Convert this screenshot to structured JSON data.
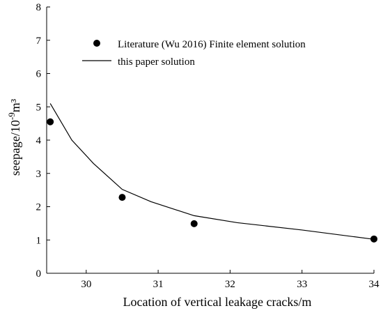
{
  "chart_data": {
    "type": "scatter",
    "title": "",
    "xlabel": "Location of vertical leakage cracks/m",
    "ylabel_main": "seepage/10",
    "ylabel_exp": "-9",
    "ylabel_unit": "m³",
    "xlim": [
      29.45,
      34.0
    ],
    "ylim": [
      0,
      8
    ],
    "x_ticks": [
      30,
      31,
      32,
      33,
      34
    ],
    "y_ticks": [
      0,
      1,
      2,
      3,
      4,
      5,
      6,
      7,
      8
    ],
    "grid": false,
    "legend_position": "top-right",
    "series": [
      {
        "name": "Literature (Wu 2016) Finite element solution",
        "kind": "points",
        "color": "#000000",
        "x": [
          29.5,
          30.5,
          31.5,
          34.0
        ],
        "y": [
          4.55,
          2.28,
          1.49,
          1.03
        ]
      },
      {
        "name": "this paper solution",
        "kind": "line",
        "color": "#000000",
        "x": [
          29.5,
          29.8,
          30.1,
          30.5,
          30.9,
          31.5,
          32.1,
          33.0,
          34.0
        ],
        "y": [
          5.1,
          4.0,
          3.3,
          2.52,
          2.15,
          1.73,
          1.52,
          1.3,
          1.02
        ]
      }
    ]
  }
}
